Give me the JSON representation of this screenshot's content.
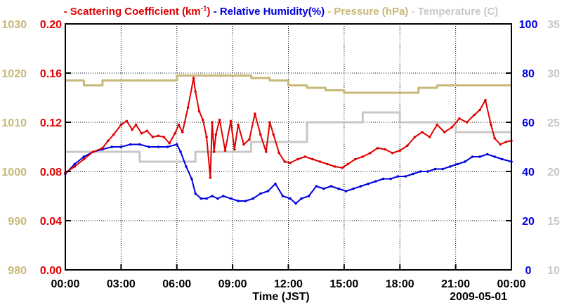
{
  "chart_data": {
    "type": "line",
    "title": "",
    "legend": [
      {
        "key": "scattering",
        "text": "- Scattering Coefficient (km",
        "sup": "-1",
        "suffix": ")",
        "color": "#e00000"
      },
      {
        "key": "humidity",
        "text": "- Relative Humidity(%)",
        "color": "#0000e0"
      },
      {
        "key": "pressure",
        "text": "- Pressure (hPa)",
        "color": "#c8b878"
      },
      {
        "key": "temperature",
        "text": "- Temperature (C)",
        "color": "#c8c8c8"
      }
    ],
    "xlabel": "Time (JST)",
    "date_label": "2009-05-01",
    "x_ticks": [
      "00:00",
      "03:00",
      "06:00",
      "09:00",
      "12:00",
      "15:00",
      "18:00",
      "21:00",
      "00:00"
    ],
    "x_range_hours": [
      0,
      24
    ],
    "axes": {
      "pressure": {
        "ticks": [
          "980",
          "990",
          "1000",
          "1010",
          "1020",
          "1030"
        ],
        "range": [
          980,
          1030
        ],
        "color": "#c8b878"
      },
      "scattering": {
        "ticks": [
          "0.00",
          "0.04",
          "0.08",
          "0.12",
          "0.16",
          "0.20"
        ],
        "range": [
          0,
          0.2
        ],
        "color": "#e00000"
      },
      "humidity": {
        "ticks": [
          "0",
          "20",
          "40",
          "60",
          "80",
          "100"
        ],
        "range": [
          0,
          100
        ],
        "color": "#0000e0"
      },
      "temperature": {
        "ticks": [
          "10",
          "15",
          "20",
          "25",
          "30",
          "35"
        ],
        "range": [
          10,
          35
        ],
        "color": "#c8c8c8"
      }
    },
    "series": [
      {
        "name": "Scattering Coefficient",
        "key": "scattering",
        "axis": "scattering",
        "color": "#e00000",
        "x": [
          0,
          0.5,
          1.0,
          1.5,
          2.0,
          2.3,
          2.6,
          3.0,
          3.3,
          3.6,
          3.8,
          4.1,
          4.4,
          4.7,
          5.0,
          5.3,
          5.6,
          5.9,
          6.1,
          6.3,
          6.6,
          6.9,
          7.0,
          7.2,
          7.4,
          7.6,
          7.8,
          7.9,
          8.0,
          8.1,
          8.3,
          8.6,
          8.9,
          9.1,
          9.3,
          9.6,
          9.9,
          10.2,
          10.5,
          10.8,
          11.0,
          11.2,
          11.5,
          11.8,
          12.1,
          12.5,
          12.9,
          13.3,
          13.7,
          14.1,
          14.5,
          14.9,
          15.2,
          15.6,
          16.0,
          16.4,
          16.8,
          17.2,
          17.6,
          18.0,
          18.4,
          18.8,
          19.2,
          19.6,
          20.0,
          20.4,
          20.8,
          21.2,
          21.6,
          22.0,
          22.3,
          22.6,
          22.9,
          23.1,
          23.4,
          23.7,
          24.0
        ],
        "values": [
          0.079,
          0.084,
          0.09,
          0.096,
          0.099,
          0.105,
          0.11,
          0.118,
          0.121,
          0.114,
          0.118,
          0.111,
          0.113,
          0.108,
          0.109,
          0.108,
          0.103,
          0.111,
          0.118,
          0.112,
          0.132,
          0.156,
          0.145,
          0.129,
          0.122,
          0.108,
          0.075,
          0.12,
          0.096,
          0.11,
          0.122,
          0.097,
          0.121,
          0.098,
          0.118,
          0.102,
          0.106,
          0.127,
          0.11,
          0.096,
          0.12,
          0.11,
          0.095,
          0.088,
          0.087,
          0.09,
          0.092,
          0.09,
          0.088,
          0.086,
          0.084,
          0.083,
          0.086,
          0.09,
          0.092,
          0.095,
          0.099,
          0.098,
          0.095,
          0.097,
          0.101,
          0.108,
          0.112,
          0.108,
          0.118,
          0.112,
          0.116,
          0.123,
          0.12,
          0.126,
          0.13,
          0.138,
          0.118,
          0.107,
          0.102,
          0.104,
          0.105
        ]
      },
      {
        "name": "Relative Humidity",
        "key": "humidity",
        "axis": "humidity",
        "color": "#0000e0",
        "x": [
          0,
          0.5,
          1.0,
          1.5,
          2.0,
          2.5,
          3.0,
          3.5,
          4.0,
          4.5,
          5.0,
          5.5,
          6.0,
          6.2,
          6.5,
          6.8,
          7.0,
          7.3,
          7.6,
          7.9,
          8.2,
          8.5,
          8.9,
          9.3,
          9.7,
          10.1,
          10.5,
          10.9,
          11.3,
          11.7,
          12.1,
          12.4,
          12.7,
          13.1,
          13.5,
          13.9,
          14.3,
          14.7,
          15.1,
          15.5,
          15.9,
          16.3,
          16.7,
          17.1,
          17.5,
          17.9,
          18.3,
          18.7,
          19.1,
          19.5,
          19.9,
          20.3,
          20.7,
          21.1,
          21.5,
          21.9,
          22.3,
          22.7,
          23.1,
          23.5,
          24.0
        ],
        "values": [
          39,
          43,
          46,
          48,
          49,
          50,
          50,
          51,
          51,
          50,
          50,
          50,
          51,
          48,
          42,
          37,
          31,
          29,
          29,
          30,
          29,
          30,
          29,
          28,
          28,
          29,
          31,
          32,
          35,
          30,
          29,
          27,
          29,
          30,
          34,
          33,
          34,
          33,
          32,
          33,
          34,
          35,
          36,
          37,
          37,
          38,
          38,
          39,
          40,
          40,
          41,
          41,
          42,
          43,
          44,
          46,
          46,
          47,
          46,
          45,
          44
        ]
      },
      {
        "name": "Pressure",
        "key": "pressure",
        "axis": "pressure",
        "color": "#c8b878",
        "step": true,
        "x": [
          0,
          1,
          2,
          3,
          4,
          5,
          6,
          7,
          8,
          9,
          10,
          11,
          12,
          13,
          14,
          15,
          16,
          17,
          18,
          19,
          20,
          21,
          22,
          23,
          24
        ],
        "values": [
          1018.5,
          1017.5,
          1018.5,
          1018.5,
          1018.5,
          1018.5,
          1019.5,
          1019.5,
          1019.5,
          1019.5,
          1019,
          1018.5,
          1017.5,
          1017,
          1016.5,
          1016,
          1016,
          1016,
          1016,
          1017,
          1017.5,
          1017.5,
          1017.5,
          1017.5,
          1017.5
        ]
      },
      {
        "name": "Temperature",
        "key": "temperature",
        "axis": "temperature",
        "color": "#c8c8c8",
        "step": true,
        "x": [
          0,
          1,
          2,
          3,
          4,
          5,
          6,
          7,
          8,
          9,
          10,
          11,
          12,
          13,
          14,
          15,
          16,
          17,
          18,
          19,
          20,
          21,
          22,
          23,
          24
        ],
        "values": [
          22,
          22,
          22,
          22,
          21,
          21,
          21,
          22,
          22,
          22,
          23,
          23,
          23,
          25,
          25,
          25,
          26,
          26,
          25,
          25,
          25,
          24,
          24,
          24,
          24
        ]
      }
    ]
  }
}
